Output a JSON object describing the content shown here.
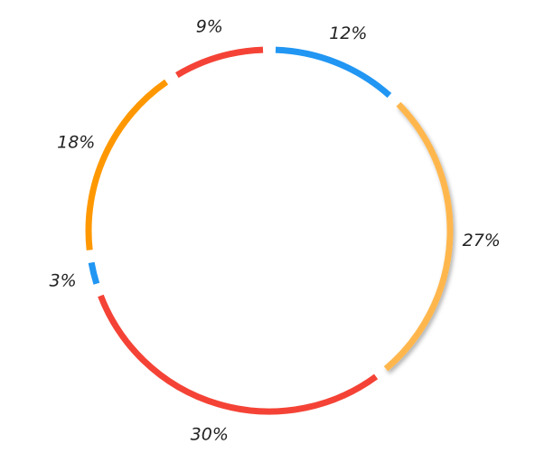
{
  "chart_data": {
    "type": "pie",
    "style": "ring",
    "start_angle_deg": 0,
    "direction": "clockwise",
    "gap_deg": 4,
    "slices": [
      {
        "label": "12%",
        "value": 12,
        "color": "#2196F3"
      },
      {
        "label": "27%",
        "value": 27,
        "color": "#FFB74D",
        "highlighted": true
      },
      {
        "label": "30%",
        "value": 30,
        "color": "#F44336"
      },
      {
        "label": "3%",
        "value": 3,
        "color": "#2196F3"
      },
      {
        "label": "18%",
        "value": 18,
        "color": "#FF9800"
      },
      {
        "label": "9%",
        "value": 9,
        "color": "#F44336"
      }
    ],
    "legend": "none",
    "title": ""
  }
}
